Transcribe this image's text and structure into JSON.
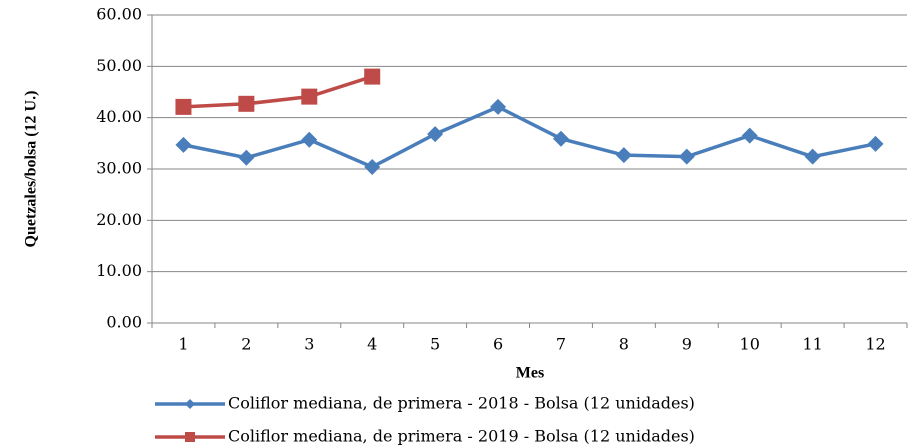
{
  "chart_data": {
    "type": "line",
    "categories": [
      "1",
      "2",
      "3",
      "4",
      "5",
      "6",
      "7",
      "8",
      "9",
      "10",
      "11",
      "12"
    ],
    "x_label": "Mes",
    "y_label": "Quetzales/bolsa (12 U.)",
    "series": [
      {
        "name": "Coliflor mediana, de primera - 2018 - Bolsa (12 unidades)",
        "color": "#4a7ebb",
        "marker": "diamond",
        "values": [
          34.7,
          32.2,
          35.7,
          30.4,
          36.8,
          42.1,
          35.9,
          32.7,
          32.4,
          36.5,
          32.4,
          34.9
        ]
      },
      {
        "name": "Coliflor mediana, de primera - 2019 - Bolsa (12 unidades)",
        "color": "#be4b48",
        "marker": "square",
        "values": [
          42.1,
          42.7,
          44.1,
          48.0,
          null,
          null,
          null,
          null,
          null,
          null,
          null,
          null
        ]
      }
    ],
    "ylim": [
      0,
      60
    ],
    "yticks": [
      {
        "value": 0,
        "label": "0.00"
      },
      {
        "value": 10,
        "label": "10.00"
      },
      {
        "value": 20,
        "label": "20.00"
      },
      {
        "value": 30,
        "label": "30.00"
      },
      {
        "value": 40,
        "label": "40.00"
      },
      {
        "value": 50,
        "label": "50.00"
      },
      {
        "value": 60,
        "label": "60.00"
      }
    ],
    "grid": true,
    "legend": "bottom"
  }
}
